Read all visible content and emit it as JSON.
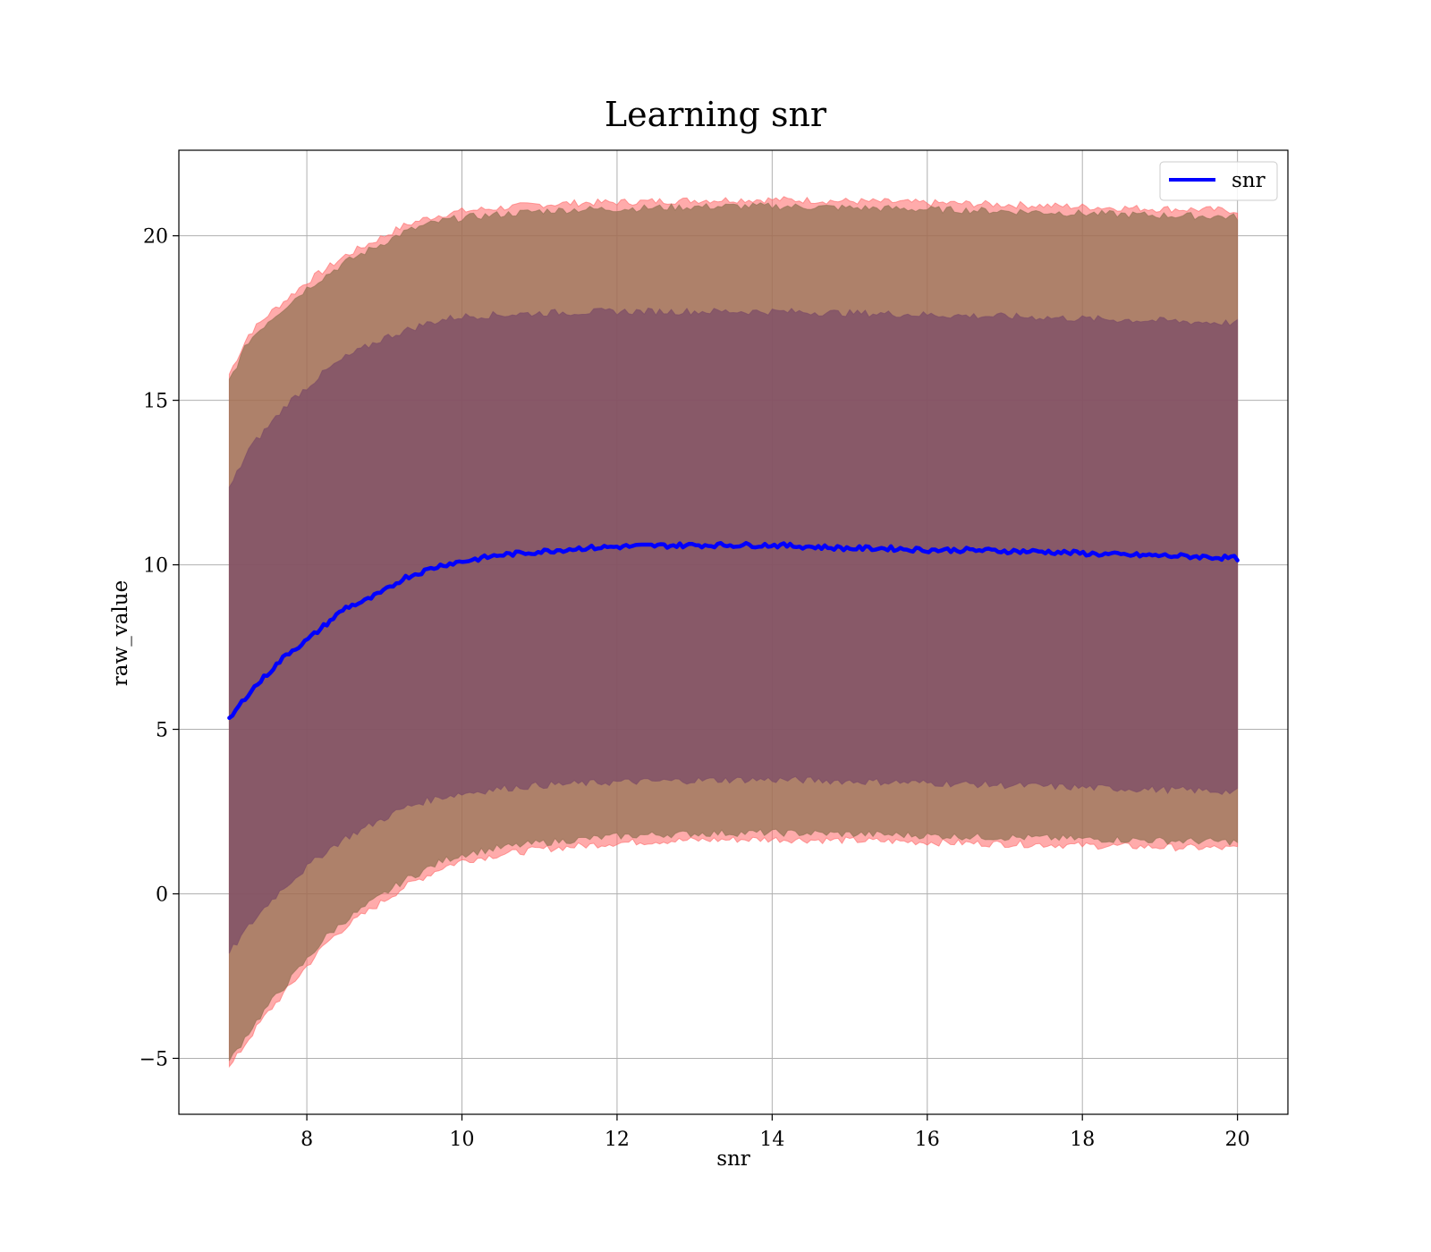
{
  "chart_data": {
    "type": "line",
    "title": "Learning snr",
    "xlabel": "snr",
    "ylabel": "raw_value",
    "xlim": [
      6.35,
      20.65
    ],
    "ylim": [
      -6.7,
      22.6
    ],
    "xticks": [
      8,
      10,
      12,
      14,
      16,
      18,
      20
    ],
    "yticks": [
      -5,
      0,
      5,
      10,
      15,
      20
    ],
    "ytick_labels": [
      "−5",
      "0",
      "5",
      "10",
      "15",
      "20"
    ],
    "grid": true,
    "legend": {
      "position": "top-right",
      "entries": [
        "snr"
      ]
    },
    "x": [
      7.0,
      7.25,
      7.5,
      7.75,
      8.0,
      8.25,
      8.5,
      8.75,
      9.0,
      9.25,
      9.5,
      9.75,
      10.0,
      10.5,
      11.0,
      11.5,
      12.0,
      12.5,
      13.0,
      13.5,
      14.0,
      14.5,
      15.0,
      15.5,
      16.0,
      16.5,
      17.0,
      17.5,
      18.0,
      18.5,
      19.0,
      19.5,
      20.0
    ],
    "series": [
      {
        "name": "snr",
        "type": "line",
        "color": "#0000ff",
        "values": [
          5.3,
          6.1,
          6.7,
          7.3,
          7.7,
          8.2,
          8.7,
          8.9,
          9.2,
          9.6,
          9.8,
          10.0,
          10.1,
          10.3,
          10.4,
          10.5,
          10.55,
          10.58,
          10.6,
          10.6,
          10.6,
          10.55,
          10.5,
          10.5,
          10.45,
          10.45,
          10.42,
          10.4,
          10.35,
          10.3,
          10.28,
          10.25,
          10.2
        ]
      },
      {
        "type": "band",
        "color": "#ff6666",
        "lower": [
          -5.3,
          -4.4,
          -3.6,
          -2.9,
          -2.2,
          -1.5,
          -1.0,
          -0.6,
          -0.2,
          0.2,
          0.5,
          0.8,
          1.0,
          1.2,
          1.35,
          1.45,
          1.55,
          1.6,
          1.63,
          1.65,
          1.66,
          1.64,
          1.62,
          1.6,
          1.57,
          1.54,
          1.52,
          1.5,
          1.47,
          1.45,
          1.42,
          1.4,
          1.38
        ],
        "upper": [
          15.8,
          17.0,
          17.6,
          18.1,
          18.6,
          19.0,
          19.4,
          19.7,
          20.0,
          20.3,
          20.5,
          20.65,
          20.75,
          20.85,
          20.95,
          21.0,
          21.02,
          21.05,
          21.08,
          21.1,
          21.1,
          21.08,
          21.05,
          21.03,
          21.0,
          20.98,
          20.95,
          20.92,
          20.88,
          20.85,
          20.82,
          20.8,
          20.77
        ]
      },
      {
        "type": "band",
        "color": "#8f7050",
        "lower": [
          -5.1,
          -4.2,
          -3.4,
          -2.7,
          -2.0,
          -1.3,
          -0.8,
          -0.4,
          0.0,
          0.4,
          0.7,
          1.0,
          1.2,
          1.4,
          1.55,
          1.65,
          1.75,
          1.8,
          1.83,
          1.85,
          1.86,
          1.84,
          1.82,
          1.8,
          1.77,
          1.74,
          1.72,
          1.7,
          1.67,
          1.65,
          1.62,
          1.6,
          1.58
        ],
        "upper": [
          15.6,
          16.8,
          17.4,
          17.9,
          18.4,
          18.8,
          19.2,
          19.5,
          19.8,
          20.1,
          20.3,
          20.45,
          20.55,
          20.65,
          20.75,
          20.8,
          20.82,
          20.85,
          20.88,
          20.9,
          20.9,
          20.88,
          20.85,
          20.83,
          20.8,
          20.78,
          20.75,
          20.72,
          20.68,
          20.65,
          20.62,
          20.6,
          20.57
        ]
      },
      {
        "type": "band",
        "color": "#7a4a68",
        "lower": [
          -1.8,
          -1.0,
          -0.3,
          0.3,
          0.8,
          1.3,
          1.7,
          2.0,
          2.3,
          2.6,
          2.8,
          2.95,
          3.05,
          3.2,
          3.3,
          3.35,
          3.4,
          3.42,
          3.45,
          3.47,
          3.47,
          3.45,
          3.42,
          3.4,
          3.37,
          3.34,
          3.3,
          3.27,
          3.23,
          3.2,
          3.17,
          3.14,
          3.1
        ],
        "upper": [
          12.3,
          13.5,
          14.2,
          14.9,
          15.4,
          15.9,
          16.3,
          16.6,
          16.9,
          17.1,
          17.3,
          17.45,
          17.55,
          17.6,
          17.65,
          17.68,
          17.7,
          17.7,
          17.7,
          17.7,
          17.7,
          17.68,
          17.65,
          17.63,
          17.6,
          17.57,
          17.55,
          17.52,
          17.48,
          17.45,
          17.42,
          17.38,
          17.35
        ]
      }
    ]
  }
}
